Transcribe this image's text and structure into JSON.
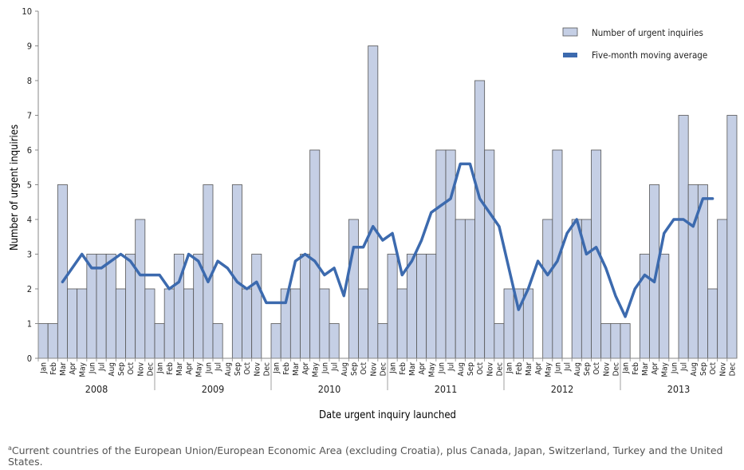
{
  "chart_data": {
    "type": "bar",
    "ylabel": "Number of urgent inquiries",
    "xlabel": "Date urgent inquiry launched",
    "ylim": [
      0,
      10
    ],
    "yticks": [
      0,
      1,
      2,
      3,
      4,
      5,
      6,
      7,
      8,
      9,
      10
    ],
    "years": [
      "2008",
      "2009",
      "2010",
      "2011",
      "2012",
      "2013"
    ],
    "month_labels": [
      "Jan",
      "Feb",
      "Mar",
      "Apr",
      "May",
      "Jun",
      "Jul",
      "Aug",
      "Sep",
      "Oct",
      "Nov",
      "Dec"
    ],
    "bar_series": {
      "name": "Number of urgent inquiries",
      "color": "#c5cfe5",
      "values": [
        1,
        1,
        5,
        2,
        2,
        3,
        3,
        3,
        2,
        3,
        4,
        2,
        1,
        2,
        3,
        2,
        3,
        5,
        1,
        0,
        5,
        2,
        3,
        0,
        1,
        2,
        2,
        3,
        6,
        2,
        1,
        0,
        4,
        2,
        9,
        1,
        3,
        2,
        3,
        3,
        3,
        6,
        6,
        4,
        4,
        8,
        6,
        1,
        2,
        2,
        2,
        0,
        4,
        6,
        0,
        4,
        4,
        6,
        1,
        1,
        1,
        0,
        3,
        5,
        3,
        0,
        7,
        5,
        5,
        2,
        4,
        7
      ]
    },
    "line_series": {
      "name": "Five-month moving average",
      "color": "#3c6aae",
      "values": [
        null,
        null,
        2.2,
        2.6,
        3.0,
        2.6,
        2.6,
        2.8,
        3.0,
        2.8,
        2.4,
        2.4,
        2.4,
        2.0,
        2.2,
        3.0,
        2.8,
        2.2,
        2.8,
        2.6,
        2.2,
        2.0,
        2.2,
        1.6,
        1.6,
        1.6,
        2.8,
        3.0,
        2.8,
        2.4,
        2.6,
        1.8,
        3.2,
        3.2,
        3.8,
        3.4,
        3.6,
        2.4,
        2.8,
        3.4,
        4.2,
        4.4,
        4.6,
        5.6,
        5.6,
        4.6,
        4.2,
        3.8,
        2.6,
        1.4,
        2.0,
        2.8,
        2.4,
        2.8,
        3.6,
        4.0,
        3.0,
        3.2,
        2.6,
        1.8,
        1.2,
        2.0,
        2.4,
        2.2,
        3.6,
        4.0,
        4.0,
        3.8,
        4.6,
        4.6,
        null,
        null
      ]
    },
    "legend_position": "top-right"
  },
  "footnote": {
    "marker": "a",
    "text": "Current countries of the European Union/European Economic Area (excluding Croatia), plus Canada, Japan, Switzerland, Turkey and the United States."
  }
}
